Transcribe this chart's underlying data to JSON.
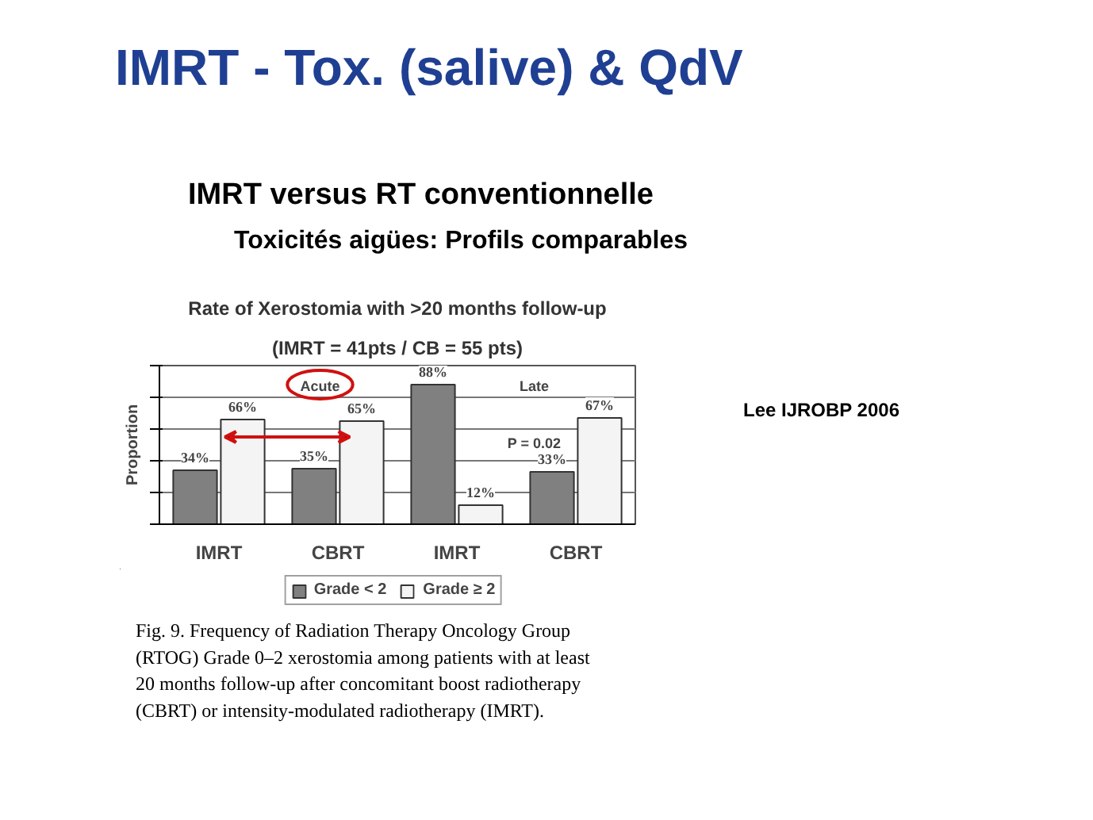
{
  "chart_data": {
    "type": "bar",
    "title": "Rate of Xerostomia with >20 months follow-up",
    "subtitle": "(IMRT = 41pts / CB = 55 pts)",
    "ylabel": "Proportion",
    "categories": [
      "IMRT",
      "CBRT",
      "IMRT",
      "CBRT"
    ],
    "series": [
      {
        "name": "Grade < 2",
        "color": "#808080",
        "values": [
          34,
          35,
          88,
          33
        ],
        "value_labels": [
          "34%",
          "35%",
          "88%",
          "33%"
        ]
      },
      {
        "name": "Grade ≥ 2",
        "color": "#f4f4f4",
        "values": [
          66,
          65,
          12,
          67
        ],
        "value_labels": [
          "66%",
          "65%",
          "12%",
          "67%"
        ]
      }
    ],
    "ylim": [
      0,
      100
    ],
    "yticks": [
      {
        "value": 0,
        "label": null
      },
      {
        "value": 20,
        "label": null
      },
      {
        "value": 40,
        "label": null
      },
      {
        "value": 60,
        "label": null
      },
      {
        "value": 80,
        "label": null
      },
      {
        "value": 100,
        "label": null
      }
    ],
    "tick_labels": "x",
    "grid": "y",
    "legend": "bottom",
    "annotations": [
      "IMRT - Tox. (salive) & QdV",
      "IMRT versus RT conventionnelle",
      "Toxicités aigües: Profils comparables",
      "Lee IJROBP 2006",
      "Fig. 9. Frequency of Radiation Therapy Oncology Group (RTOG) Grade 0–2 xerostomia among patients with at least 20 months follow-up after concomitant boost radiotherapy (CBRT) or intensity-modulated radiotherapy (IMRT).",
      "Acute",
      "Late",
      "P = 0.02"
    ]
  }
}
